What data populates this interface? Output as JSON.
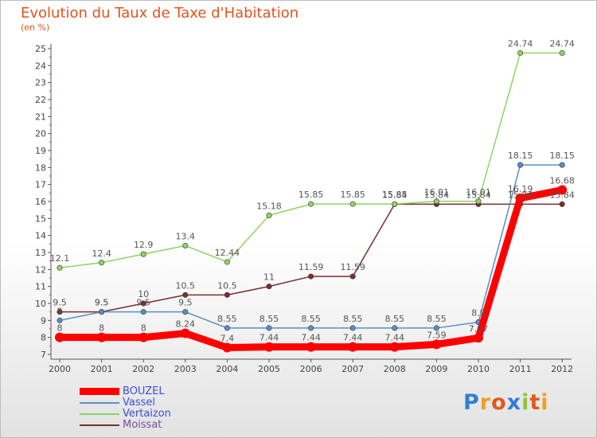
{
  "title": "Evolution du Taux de Taxe d'Habitation",
  "subtitle": "(en %)",
  "logo": {
    "letters": [
      "P",
      "r",
      "o",
      "x",
      "i",
      "t",
      "i"
    ],
    "colors": [
      "#2f7fd4",
      "#f0a020",
      "#e05a1a",
      "#2f7fd4",
      "#8fc43a",
      "#e05a1a",
      "#f0a020"
    ]
  },
  "chart_data": {
    "type": "line",
    "title": "Evolution du Taux de Taxe d'Habitation",
    "ylabel": "(en %)",
    "xlabel": "",
    "categories": [
      "2000",
      "2001",
      "2002",
      "2003",
      "2004",
      "2005",
      "2006",
      "2007",
      "2008",
      "2009",
      "2010",
      "2011",
      "2012"
    ],
    "ylim": [
      7,
      25
    ],
    "grid": false,
    "legend": "bottom-left",
    "series": [
      {
        "name": "BOUZEL",
        "color": "#ff0000",
        "values": [
          8,
          8,
          8,
          8.24,
          7.4,
          7.44,
          7.44,
          7.44,
          7.44,
          7.59,
          7.97,
          16.19,
          16.68
        ],
        "labels": [
          "8",
          "8",
          "8",
          "8.24",
          "7.4",
          "7.44",
          "7.44",
          "7.44",
          "7.44",
          "7.59",
          "7.97",
          "16.19",
          "16.68"
        ]
      },
      {
        "name": "Vassel",
        "color": "#5b8fc4",
        "values": [
          9,
          9.5,
          9.5,
          9.5,
          8.55,
          8.55,
          8.55,
          8.55,
          8.55,
          8.55,
          8.9,
          18.15,
          18.15
        ],
        "labels": [
          "9",
          "9.5",
          "9.5",
          "9.5",
          "8.55",
          "8.55",
          "8.55",
          "8.55",
          "8.55",
          "8.55",
          "8.9",
          "18.15",
          "18.15"
        ]
      },
      {
        "name": "Vertaizon",
        "color": "#8fd463",
        "values": [
          12.1,
          12.4,
          12.9,
          13.4,
          12.44,
          15.18,
          15.85,
          15.85,
          15.85,
          16.01,
          16.01,
          24.74,
          24.74
        ],
        "labels": [
          "12.1",
          "12.4",
          "12.9",
          "13.4",
          "12.44",
          "15.18",
          "15.85",
          "15.85",
          "15.85",
          "16.01",
          "16.01",
          "24.74",
          "24.74"
        ]
      },
      {
        "name": "Moissat",
        "color": "#7a2e2e",
        "values": [
          9.5,
          9.5,
          10,
          10.5,
          10.5,
          11,
          11.59,
          11.59,
          15.84,
          15.84,
          15.84,
          15.84,
          15.84
        ],
        "labels": [
          "9.5",
          "9.5",
          "10",
          "10.5",
          "10.5",
          "11",
          "11.59",
          "11.59",
          "15.84",
          "15.84",
          "15.84",
          "15.84",
          "15.84"
        ]
      }
    ]
  }
}
